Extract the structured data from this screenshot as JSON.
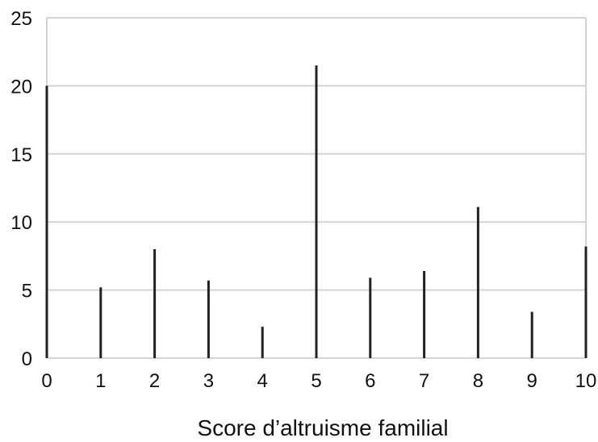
{
  "chart_data": {
    "type": "bar",
    "categories": [
      "0",
      "1",
      "2",
      "3",
      "4",
      "5",
      "6",
      "7",
      "8",
      "9",
      "10"
    ],
    "values": [
      20,
      5.2,
      8,
      5.7,
      2.3,
      21.5,
      5.9,
      6.4,
      11.1,
      3.4,
      8.2
    ],
    "title": "",
    "xlabel": "Score d’altruisme familial",
    "ylabel": "",
    "ylim": [
      0,
      25
    ],
    "yticks": [
      "0",
      "5",
      "10",
      "15",
      "20",
      "25"
    ],
    "grid": true,
    "legend": "none",
    "colors": {
      "bar": "#222222",
      "grid": "#d4d4d4",
      "frame": "#d4d4d4",
      "text": "#111111"
    }
  }
}
